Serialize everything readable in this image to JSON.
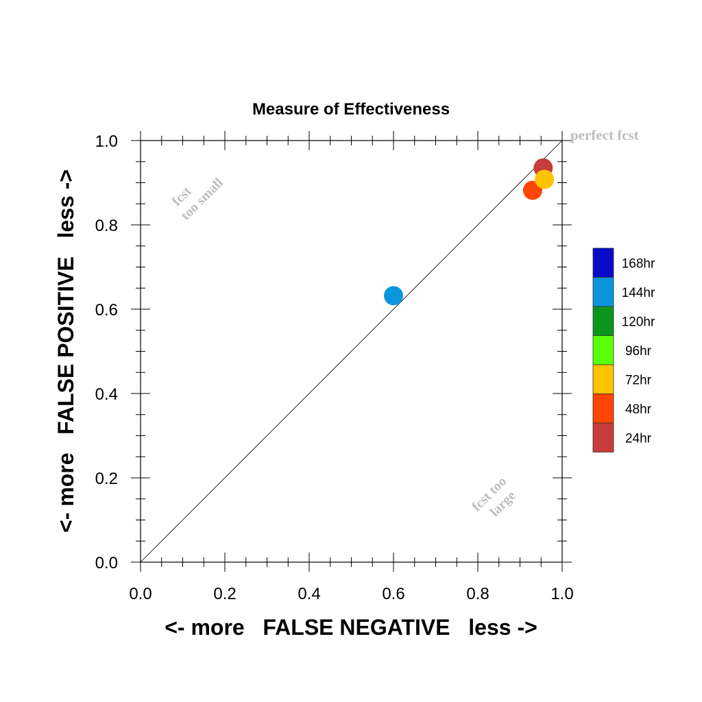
{
  "chart_data": {
    "type": "scatter",
    "title": "Measure of Effectiveness",
    "xlabel": "<- more   FALSE NEGATIVE   less ->",
    "ylabel": "<- more   FALSE POSITIVE   less ->",
    "xlim": [
      0.0,
      1.0
    ],
    "ylim": [
      0.0,
      1.0
    ],
    "xticks": [
      "0.0",
      "0.2",
      "0.4",
      "0.6",
      "0.8",
      "1.0"
    ],
    "yticks": [
      "0.0",
      "0.2",
      "0.4",
      "0.6",
      "0.8",
      "1.0"
    ],
    "grid": false,
    "diagonal_line": true,
    "annotations": {
      "perfect": "perfect fcst",
      "too_small": [
        "fcst",
        "too small"
      ],
      "too_large": [
        "fcst too",
        "large"
      ]
    },
    "legend": {
      "placement": "right",
      "entries": [
        {
          "label": "168hr",
          "color": "#0a0ac8"
        },
        {
          "label": "144hr",
          "color": "#0a96dc"
        },
        {
          "label": "120hr",
          "color": "#0a961e"
        },
        {
          "label": "96hr",
          "color": "#5aff0a"
        },
        {
          "label": "72hr",
          "color": "#ffc300"
        },
        {
          "label": "48hr",
          "color": "#ff4600"
        },
        {
          "label": "24hr",
          "color": "#c83c3c"
        }
      ]
    },
    "points": [
      {
        "label": "144hr",
        "x": 0.6,
        "y": 0.632,
        "color": "#0a96dc"
      },
      {
        "label": "24hr",
        "x": 0.955,
        "y": 0.935,
        "color": "#c83c3c"
      },
      {
        "label": "48hr",
        "x": 0.93,
        "y": 0.882,
        "color": "#ff4600"
      },
      {
        "label": "72hr",
        "x": 0.958,
        "y": 0.908,
        "color": "#ffc300"
      }
    ]
  }
}
